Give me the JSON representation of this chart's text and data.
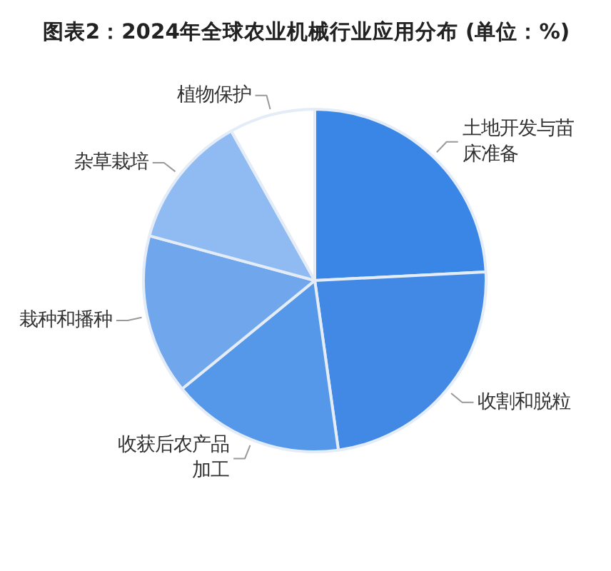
{
  "chart_data": {
    "type": "pie",
    "title": "图表2：2024年全球农业机械行业应用分布 (单位：%)",
    "categories": [
      "土地开发与苗床准备",
      "收割和脱粒",
      "收获后农产品加工",
      "栽种和播种",
      "杂草栽培",
      "植物保护"
    ],
    "values": [
      24.2,
      23.6,
      16.3,
      15.1,
      12.7,
      8.1
    ],
    "colors": [
      "#3a86e6",
      "#4189e4",
      "#5597e8",
      "#6fa6ec",
      "#8fbbf2",
      "#ffffff"
    ]
  }
}
